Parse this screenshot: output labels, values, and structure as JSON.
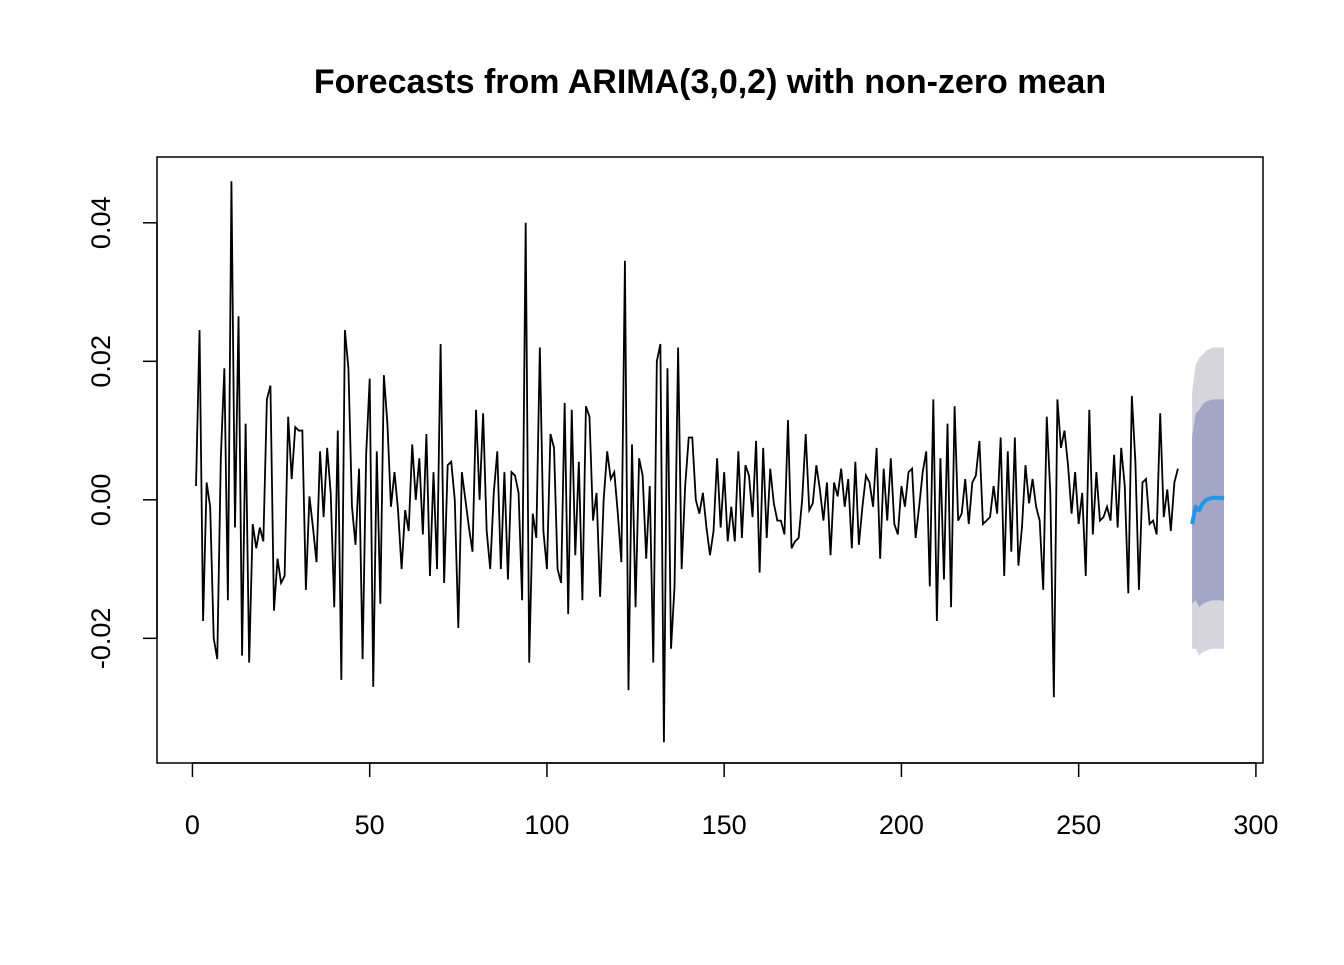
{
  "chart_data": {
    "type": "line",
    "title": "Forecasts from ARIMA(3,0,2) with non-zero mean",
    "xlabel": "",
    "ylabel": "",
    "xlim": [
      -10,
      302
    ],
    "ylim": [
      -0.038,
      0.0495
    ],
    "x_ticks": [
      0,
      50,
      100,
      150,
      200,
      250,
      300
    ],
    "x_tick_labels": [
      "0",
      "50",
      "100",
      "150",
      "200",
      "250",
      "300"
    ],
    "y_ticks": [
      -0.02,
      0.0,
      0.02,
      0.04
    ],
    "y_tick_labels": [
      "-0.02",
      "0.00",
      "0.02",
      "0.04"
    ],
    "grid": false,
    "series": [
      {
        "name": "observed",
        "color": "#000000",
        "x_start": 1,
        "values": [
          0.002,
          0.0245,
          -0.0175,
          0.0025,
          -0.001,
          -0.02,
          -0.023,
          0.006,
          0.019,
          -0.0145,
          0.046,
          -0.004,
          0.0265,
          -0.0225,
          0.011,
          -0.0235,
          -0.0035,
          -0.007,
          -0.004,
          -0.006,
          0.0145,
          0.0165,
          -0.016,
          -0.0085,
          -0.012,
          -0.011,
          0.012,
          0.003,
          0.0105,
          0.01,
          0.01,
          -0.013,
          0.0005,
          -0.004,
          -0.009,
          0.007,
          -0.0025,
          0.0075,
          0.001,
          -0.0155,
          0.01,
          -0.026,
          0.0245,
          0.019,
          -0.001,
          -0.0065,
          0.0045,
          -0.023,
          0.0065,
          0.0175,
          -0.027,
          0.007,
          -0.015,
          0.018,
          0.011,
          -0.001,
          0.004,
          -0.0015,
          -0.01,
          -0.0015,
          -0.0045,
          0.008,
          0.0,
          0.006,
          -0.005,
          0.0095,
          -0.011,
          0.004,
          -0.01,
          0.0225,
          -0.012,
          0.005,
          0.0055,
          0.0,
          -0.0185,
          0.004,
          0.0,
          -0.004,
          -0.0075,
          0.013,
          0.0,
          0.0125,
          -0.0045,
          -0.01,
          0.001,
          0.007,
          -0.01,
          0.004,
          -0.0115,
          0.004,
          0.0035,
          0.001,
          -0.0145,
          0.04,
          -0.0235,
          -0.002,
          -0.0055,
          0.022,
          -0.0045,
          -0.01,
          0.0095,
          0.0075,
          -0.01,
          -0.012,
          0.014,
          -0.0165,
          0.013,
          -0.008,
          0.0055,
          -0.0145,
          0.0135,
          0.012,
          -0.003,
          0.001,
          -0.014,
          0.0,
          0.007,
          0.003,
          0.004,
          -0.002,
          -0.009,
          0.0345,
          -0.0275,
          0.008,
          -0.0155,
          0.006,
          0.0035,
          -0.0085,
          0.002,
          -0.0235,
          0.02,
          0.0225,
          -0.035,
          0.019,
          -0.0215,
          -0.0125,
          0.022,
          -0.01,
          0.002,
          0.009,
          0.009,
          0.0,
          -0.002,
          0.001,
          -0.004,
          -0.008,
          -0.0045,
          0.006,
          -0.004,
          0.004,
          -0.006,
          -0.001,
          -0.006,
          0.007,
          -0.0055,
          0.005,
          0.0035,
          -0.0025,
          0.0085,
          -0.0105,
          0.0075,
          -0.0055,
          0.0045,
          -0.0005,
          -0.003,
          -0.003,
          -0.005,
          0.0115,
          -0.007,
          -0.006,
          -0.0055,
          0.0,
          0.0095,
          -0.0015,
          -0.0005,
          0.005,
          0.0015,
          -0.003,
          0.0025,
          -0.008,
          0.0025,
          0.0005,
          0.0045,
          -0.001,
          0.003,
          -0.007,
          0.0055,
          -0.0065,
          -0.001,
          0.0035,
          0.0025,
          -0.001,
          0.0075,
          -0.0085,
          0.0045,
          -0.003,
          0.006,
          -0.0035,
          -0.005,
          0.002,
          -0.001,
          0.004,
          0.0045,
          -0.0055,
          -0.001,
          0.004,
          0.007,
          -0.0125,
          0.0145,
          -0.0175,
          0.006,
          -0.0115,
          0.011,
          -0.0155,
          0.0135,
          -0.003,
          -0.002,
          0.003,
          -0.0035,
          0.0025,
          0.0035,
          0.0085,
          -0.0035,
          -0.003,
          -0.0025,
          0.002,
          -0.002,
          0.009,
          -0.011,
          0.007,
          -0.0075,
          0.009,
          -0.0095,
          -0.004,
          0.005,
          -0.0005,
          0.003,
          -0.001,
          -0.003,
          -0.013,
          0.012,
          0.001,
          -0.0285,
          0.0145,
          0.0075,
          0.01,
          0.005,
          -0.002,
          0.004,
          -0.0035,
          0.001,
          -0.011,
          0.013,
          -0.005,
          0.004,
          -0.003,
          -0.0025,
          -0.001,
          -0.003,
          0.0065,
          -0.004,
          0.0075,
          0.002,
          -0.0135,
          0.015,
          0.0055,
          -0.013,
          0.0025,
          0.003,
          -0.0035,
          -0.003,
          -0.005,
          0.0125,
          -0.0025,
          0.0015,
          -0.0045,
          0.0025,
          0.0045
        ]
      },
      {
        "name": "forecast",
        "color": "#2297e6",
        "x": [
          282,
          283,
          284,
          285,
          286,
          287,
          288,
          289,
          290,
          291
        ],
        "values": [
          -0.0035,
          -0.001,
          -0.0015,
          -0.0005,
          0.0,
          0.0002,
          0.0003,
          0.0003,
          0.0003,
          0.0002
        ],
        "lo80": [
          -0.015,
          -0.0145,
          -0.0155,
          -0.015,
          -0.0148,
          -0.0146,
          -0.0145,
          -0.0145,
          -0.0145,
          -0.0146
        ],
        "hi80": [
          0.009,
          0.0125,
          0.013,
          0.0138,
          0.0142,
          0.0144,
          0.0145,
          0.0145,
          0.0145,
          0.0145
        ],
        "lo95": [
          -0.0215,
          -0.0215,
          -0.0225,
          -0.022,
          -0.0218,
          -0.0216,
          -0.0215,
          -0.0215,
          -0.0215,
          -0.0215
        ],
        "hi95": [
          0.0155,
          0.0195,
          0.0205,
          0.021,
          0.0215,
          0.0218,
          0.022,
          0.022,
          0.022,
          0.022
        ]
      }
    ],
    "band_colors": {
      "pi80": "#a4a6c8",
      "pi95": "#d5d5db"
    }
  }
}
